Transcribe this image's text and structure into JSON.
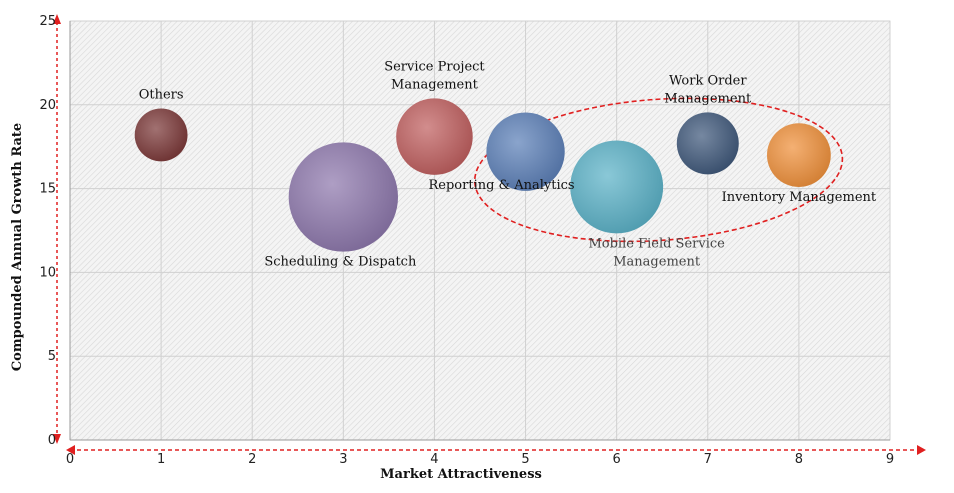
{
  "chart_data": {
    "type": "bubble",
    "xlabel": "Market Attractiveness",
    "ylabel": "Compounded  Annual  Growth Rate",
    "xlim": [
      0,
      9
    ],
    "ylim": [
      0,
      25
    ],
    "xticks": [
      0,
      1,
      2,
      3,
      4,
      5,
      6,
      7,
      8,
      9
    ],
    "yticks": [
      0,
      5,
      10,
      15,
      20,
      25
    ],
    "grid": true,
    "points": [
      {
        "name": "Others",
        "label_lines": [
          "Others"
        ],
        "x": 1,
        "y": 18.2,
        "size": 0.29,
        "color": "#7d3a3a",
        "label_pos": "above"
      },
      {
        "name": "Scheduling & Dispatch",
        "label_lines": [
          "Scheduling & Dispatch"
        ],
        "x": 3,
        "y": 14.5,
        "size": 0.6,
        "color": "#8e78ad",
        "label_pos": "below"
      },
      {
        "name": "Service Project Management",
        "label_lines": [
          "Service Project",
          "Management"
        ],
        "x": 4,
        "y": 18.1,
        "size": 0.42,
        "color": "#c06060",
        "label_pos": "above"
      },
      {
        "name": "Reporting & Analytics",
        "label_lines": [
          "Reporting & Analytics"
        ],
        "x": 5,
        "y": 17.2,
        "size": 0.43,
        "color": "#5d80b8",
        "label_pos": "below-tight"
      },
      {
        "name": "Mobile Field Service Management",
        "label_lines": [
          "Mobile Field Service",
          "Management"
        ],
        "x": 6,
        "y": 15.1,
        "size": 0.51,
        "color": "#5cb2c8",
        "label_pos": "below",
        "label_style": "light"
      },
      {
        "name": "Work Order Management",
        "label_lines": [
          "Work Order",
          "Management"
        ],
        "x": 7,
        "y": 17.7,
        "size": 0.34,
        "color": "#415a7c",
        "label_pos": "above"
      },
      {
        "name": "Inventory Management",
        "label_lines": [
          "Inventory Management"
        ],
        "x": 8,
        "y": 17,
        "size": 0.35,
        "color": "#f0913c",
        "label_pos": "below"
      }
    ],
    "highlight": {
      "style": "dashed-ellipse",
      "color": "#e02020",
      "groups": [
        "Reporting & Analytics",
        "Mobile Field Service Management",
        "Work Order Management",
        "Inventory Management"
      ]
    },
    "axis_arrows": {
      "color": "#e02020"
    }
  }
}
